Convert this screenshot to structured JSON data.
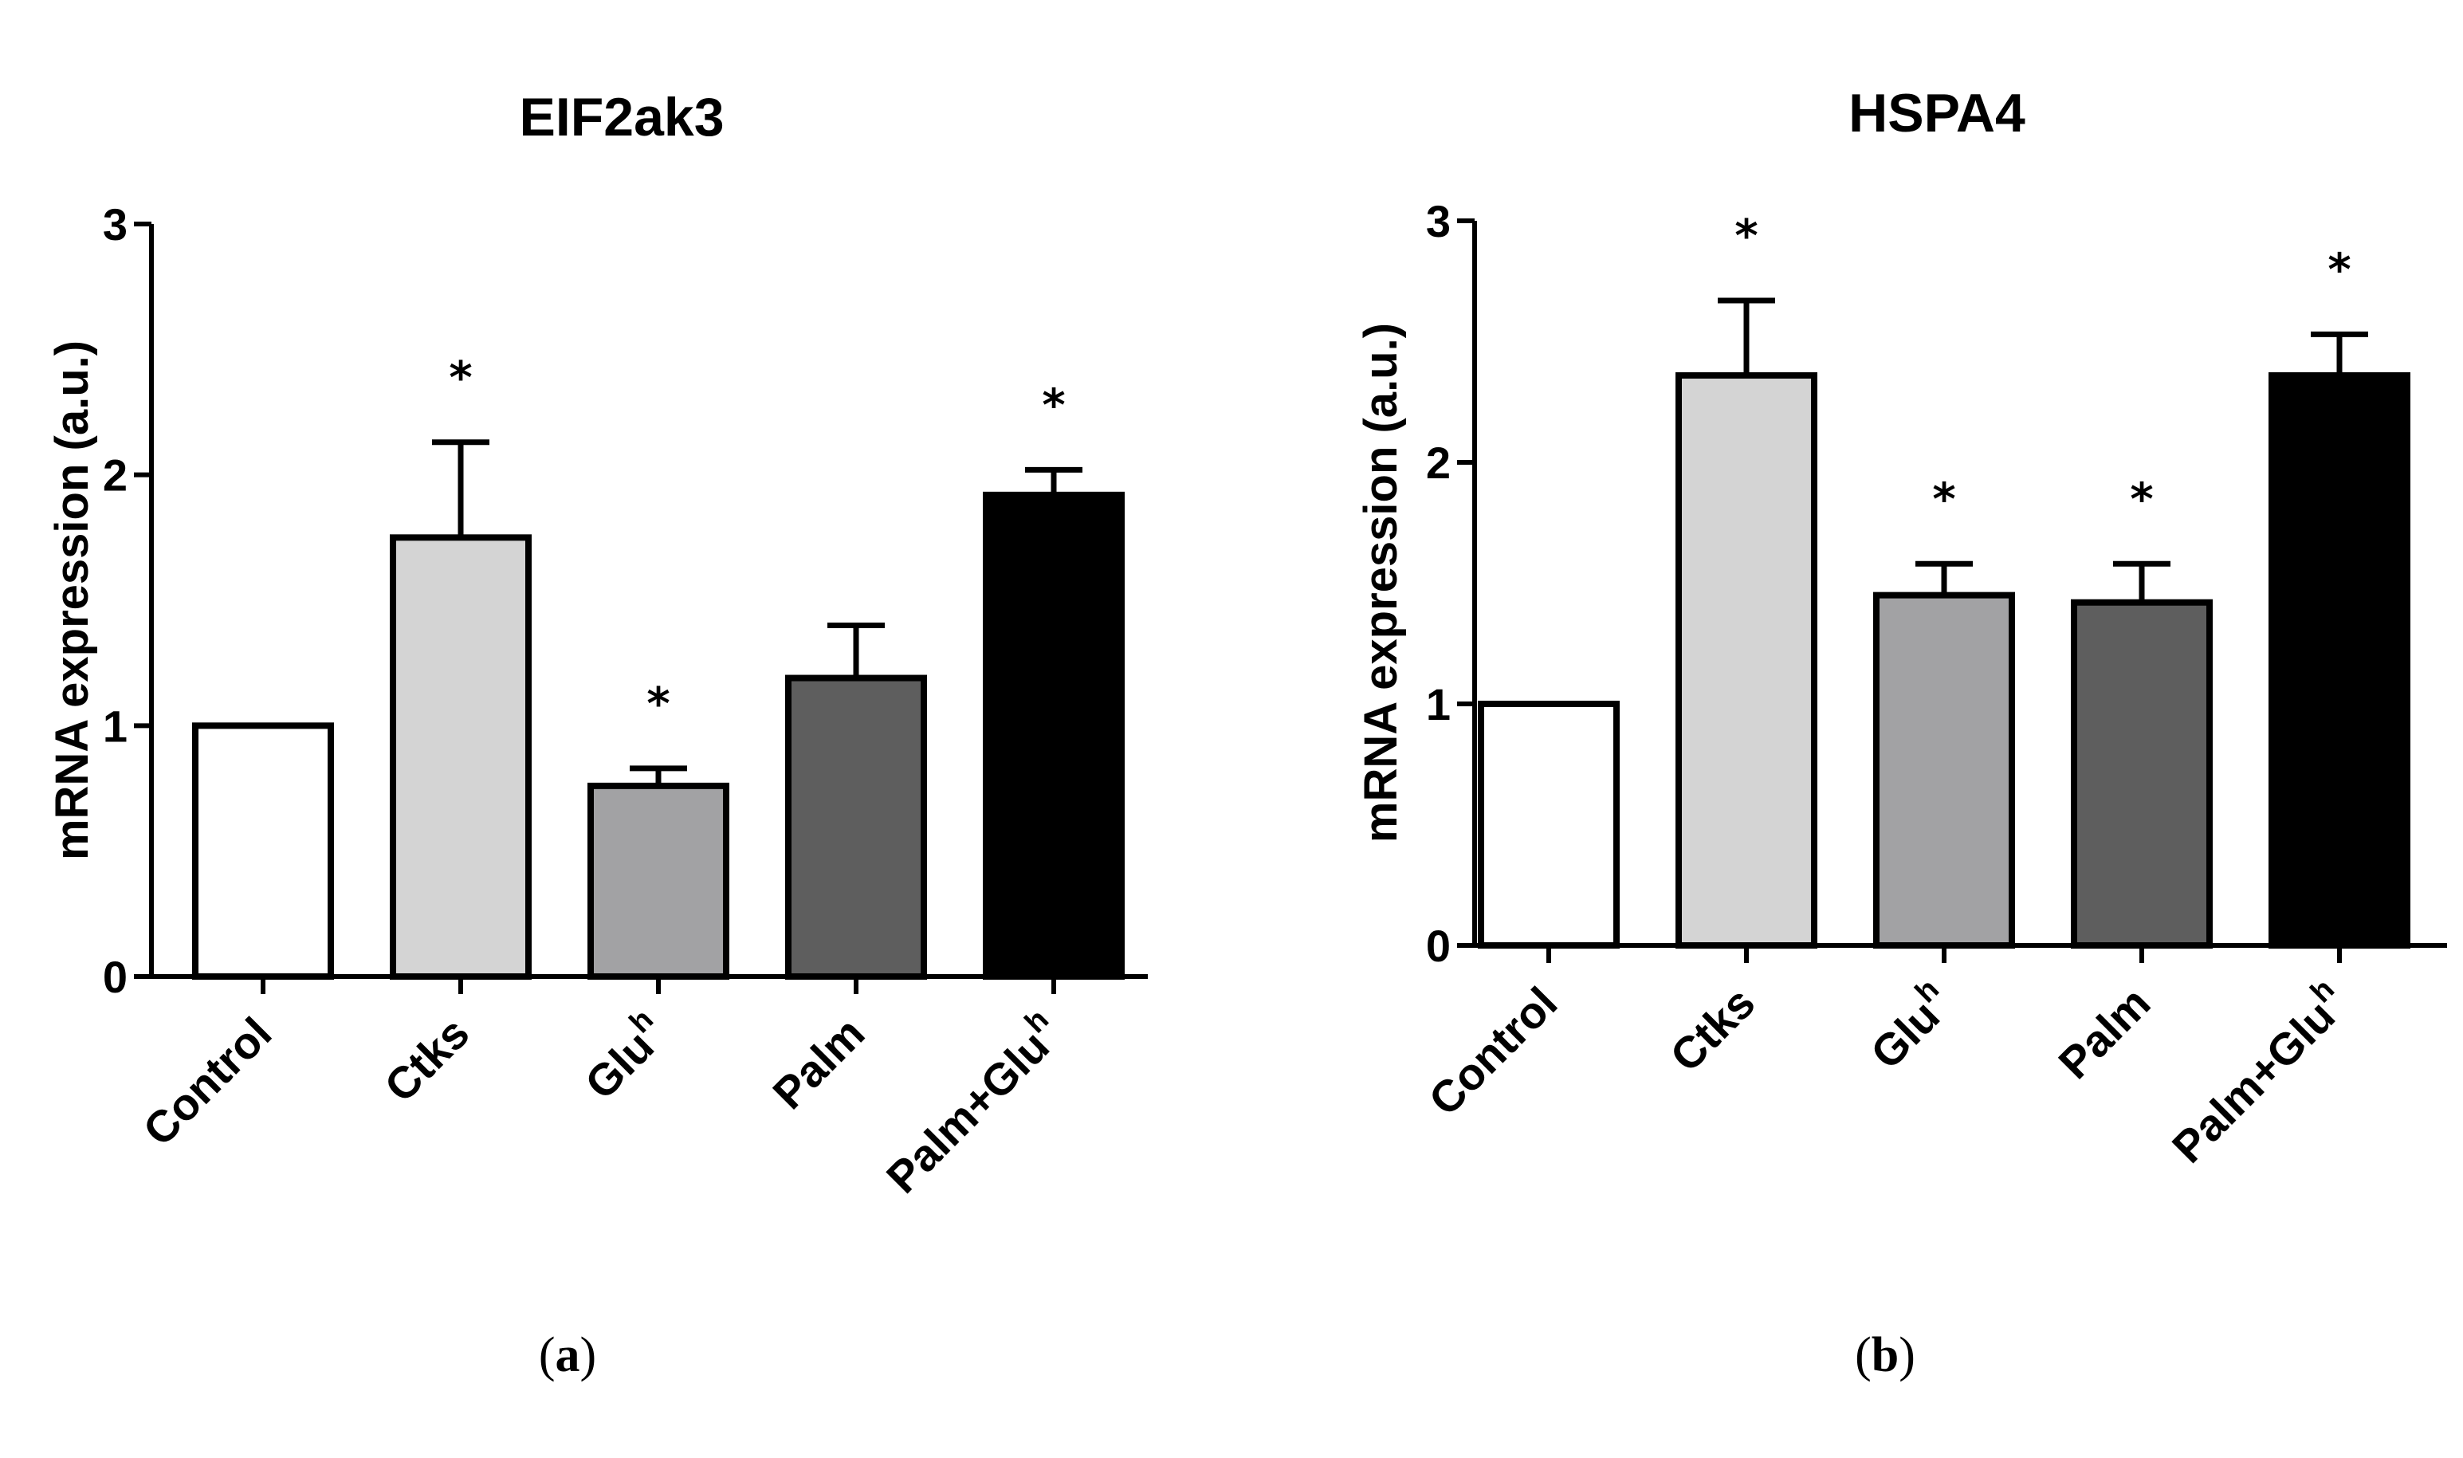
{
  "chart_data": [
    {
      "type": "bar",
      "panel_label": "a",
      "title": "EIF2ak3",
      "ylabel": "mRNA expression (a.u.)",
      "xlabel": "",
      "ylim": [
        0,
        3
      ],
      "yticks": [
        "0",
        "1",
        "2",
        "3"
      ],
      "categories": [
        {
          "base": "Control",
          "sup": ""
        },
        {
          "base": "Ctks",
          "sup": ""
        },
        {
          "base": "Glu",
          "sup": "h"
        },
        {
          "base": "Palm",
          "sup": ""
        },
        {
          "base": "Palm+Glu",
          "sup": "h"
        }
      ],
      "values": [
        1.0,
        1.75,
        0.76,
        1.19,
        1.92
      ],
      "errors": [
        0,
        0.38,
        0.07,
        0.21,
        0.1
      ],
      "significance": [
        "",
        "*",
        "*",
        "",
        "*"
      ],
      "colors": [
        "#ffffff",
        "#d4d4d4",
        "#a2a2a4",
        "#5e5e5e",
        "#000000"
      ]
    },
    {
      "type": "bar",
      "panel_label": "b",
      "title": "HSPA4",
      "ylabel": "mRNA expression (a.u.)",
      "xlabel": "",
      "ylim": [
        0,
        3
      ],
      "yticks": [
        "0",
        "1",
        "2",
        "3"
      ],
      "categories": [
        {
          "base": "Control",
          "sup": ""
        },
        {
          "base": "Ctks",
          "sup": ""
        },
        {
          "base": "Glu",
          "sup": "h"
        },
        {
          "base": "Palm",
          "sup": ""
        },
        {
          "base": "Palm+Glu",
          "sup": "h"
        }
      ],
      "values": [
        1.0,
        2.36,
        1.45,
        1.42,
        2.36
      ],
      "errors": [
        0,
        0.31,
        0.13,
        0.16,
        0.17
      ],
      "significance": [
        "",
        "*",
        "*",
        "*",
        "*"
      ],
      "colors": [
        "#ffffff",
        "#d4d4d4",
        "#a2a2a4",
        "#5e5e5e",
        "#000000"
      ]
    }
  ]
}
